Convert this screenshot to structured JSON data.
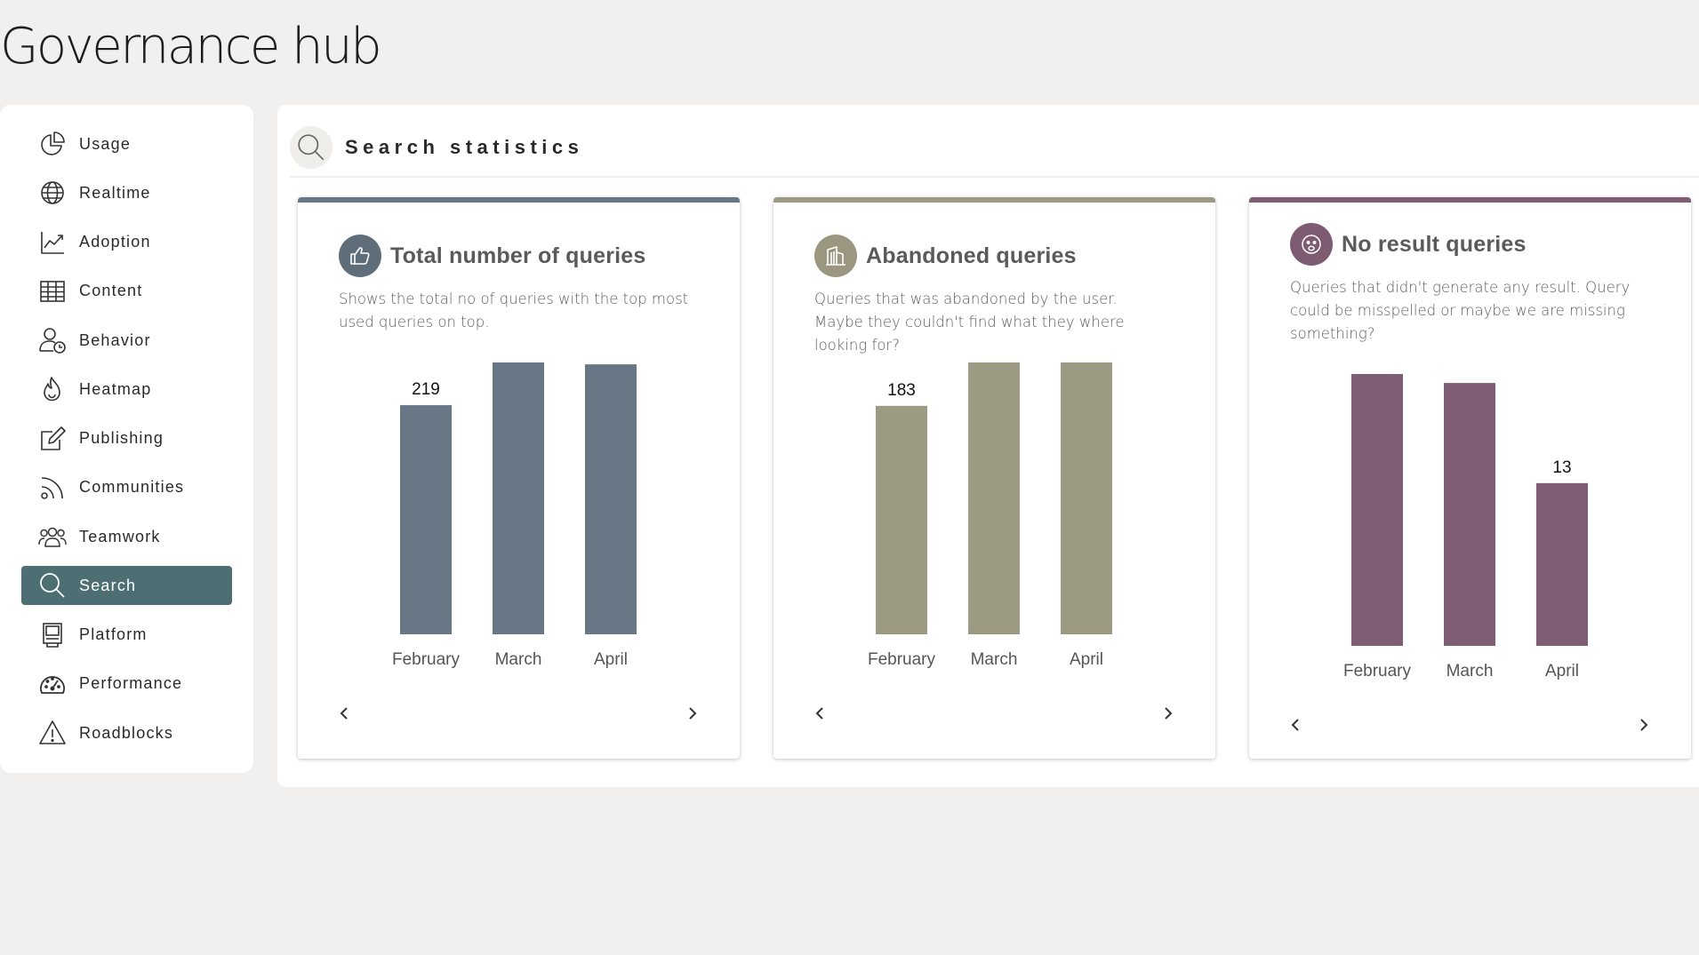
{
  "app": {
    "title": "Governance hub"
  },
  "sidebar": {
    "active": "Search",
    "items": [
      {
        "label": "Usage",
        "icon": "pie-chart-icon"
      },
      {
        "label": "Realtime",
        "icon": "globe-icon"
      },
      {
        "label": "Adoption",
        "icon": "line-chart-icon"
      },
      {
        "label": "Content",
        "icon": "table-icon"
      },
      {
        "label": "Behavior",
        "icon": "user-clock-icon"
      },
      {
        "label": "Heatmap",
        "icon": "flame-icon"
      },
      {
        "label": "Publishing",
        "icon": "edit-icon"
      },
      {
        "label": "Communities",
        "icon": "rss-icon"
      },
      {
        "label": "Teamwork",
        "icon": "people-icon"
      },
      {
        "label": "Search",
        "icon": "search-icon"
      },
      {
        "label": "Platform",
        "icon": "server-icon"
      },
      {
        "label": "Performance",
        "icon": "gauge-icon"
      },
      {
        "label": "Roadblocks",
        "icon": "warning-icon"
      }
    ]
  },
  "main": {
    "section_title": "Search statistics",
    "section_icon": "search-icon",
    "cards": [
      {
        "title": "Total number of queries",
        "icon": "thumbs-up-icon",
        "description": "Shows the total no of queries with the top most used queries on top.",
        "accent": "#677785",
        "prev_icon": "chevron-left-icon",
        "next_icon": "chevron-right-icon"
      },
      {
        "title": "Abandoned queries",
        "icon": "building-icon",
        "description": "Queries that was abandoned by the user. Maybe they couldn't find what they where looking for?",
        "accent": "#9c9a83",
        "prev_icon": "chevron-left-icon",
        "next_icon": "chevron-right-icon"
      },
      {
        "title": "No result queries",
        "icon": "sad-face-icon",
        "description": "Queries that didn't generate any result. Query could be misspelled or maybe we are missing something?",
        "accent": "#7f5e75",
        "prev_icon": "chevron-left-icon",
        "next_icon": "chevron-right-icon"
      }
    ]
  },
  "chart_data": [
    {
      "type": "bar",
      "categories": [
        "February",
        "March",
        "April"
      ],
      "values": [
        219,
        270,
        258
      ],
      "color": "#677785"
    },
    {
      "type": "bar",
      "categories": [
        "February",
        "March",
        "April"
      ],
      "values": [
        183,
        228,
        232
      ],
      "color": "#9c9a83"
    },
    {
      "type": "bar",
      "categories": [
        "February",
        "March",
        "April"
      ],
      "values": [
        22,
        21,
        13
      ],
      "color": "#7f5e75"
    }
  ]
}
